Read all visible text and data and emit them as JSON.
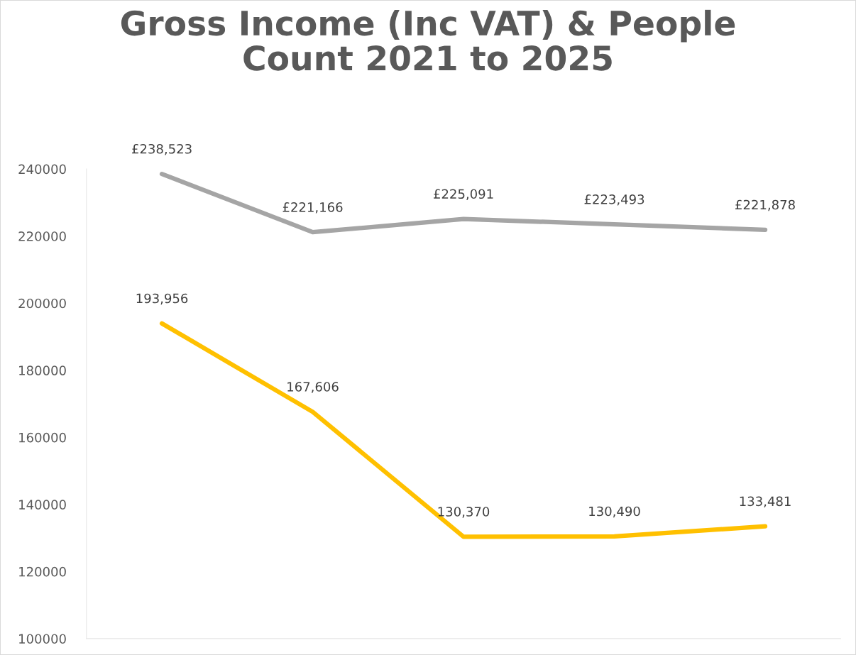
{
  "chart_data": {
    "type": "line",
    "title": "Gross Income (Inc VAT) & People\nCount 2021 to 2025",
    "categories": [
      null,
      null,
      null,
      null,
      null
    ],
    "series": [
      {
        "color": "#a5a5a5",
        "values": [
          238523,
          221166,
          225091,
          223493,
          221878
        ],
        "value_labels": [
          "£238,523",
          "£221,166",
          "£225,091",
          "£223,493",
          "£221,878"
        ]
      },
      {
        "color": "#ffc000",
        "values": [
          193956,
          167606,
          130370,
          130490,
          133481
        ],
        "value_labels": [
          "193,956",
          "167,606",
          "130,370",
          "130,490",
          "133,481"
        ]
      }
    ],
    "ylim": [
      100000,
      240000
    ],
    "yticks": [
      100000,
      120000,
      140000,
      160000,
      180000,
      200000,
      220000,
      240000
    ],
    "tick_labels": "y",
    "grid": false,
    "legend": false,
    "marker": "none",
    "line_style": "solid"
  }
}
